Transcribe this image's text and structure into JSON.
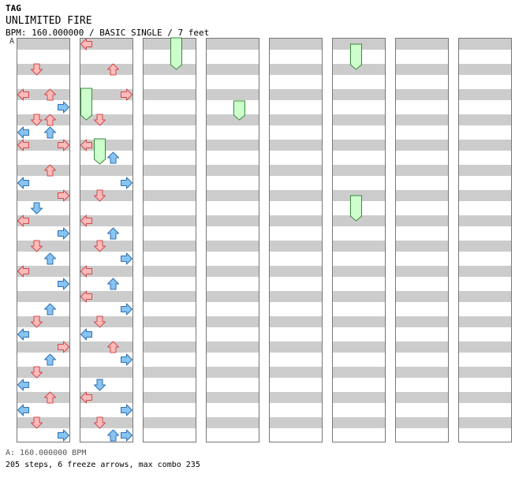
{
  "header": {
    "artist": "TAG",
    "title": "UNLIMITED FIRE",
    "info": "BPM: 160.000000 / BASIC SINGLE / 7 feet",
    "bpm_marker": "A"
  },
  "footer": {
    "bpm_line": "A: 160.000000 BPM",
    "stats_line": "205 steps, 6 freeze arrows, max combo 235"
  },
  "colors": {
    "band": "#cccccc",
    "red_fill": "#ffbbbb",
    "red_stroke": "#d04a4a",
    "blue_fill": "#88c4f2",
    "blue_stroke": "#2f6fb0",
    "freeze_fill": "#ccffcc",
    "freeze_stroke": "#3a8a3a",
    "border": "#777777"
  },
  "chart_data": {
    "type": "step-chart",
    "columns": 8,
    "measures_per_column": 8,
    "rows_per_measure": 8,
    "directions": [
      "left",
      "down",
      "up",
      "right"
    ],
    "arrows": [
      [
        0,
        2,
        1
      ],
      [
        0,
        4,
        0
      ],
      [
        0,
        4,
        2
      ],
      [
        0,
        5,
        3
      ],
      [
        0,
        6,
        1
      ],
      [
        0,
        6,
        2
      ],
      [
        0,
        7,
        0
      ],
      [
        0,
        7,
        2
      ],
      [
        0,
        8,
        0
      ],
      [
        0,
        8,
        3
      ],
      [
        0,
        10,
        2
      ],
      [
        0,
        11,
        0
      ],
      [
        0,
        12,
        3
      ],
      [
        0,
        13,
        1
      ],
      [
        0,
        14,
        0
      ],
      [
        0,
        15,
        3
      ],
      [
        0,
        16,
        1
      ],
      [
        0,
        17,
        2
      ],
      [
        0,
        18,
        0
      ],
      [
        0,
        19,
        3
      ],
      [
        0,
        21,
        2
      ],
      [
        0,
        22,
        1
      ],
      [
        0,
        23,
        0
      ],
      [
        0,
        24,
        3
      ],
      [
        0,
        25,
        2
      ],
      [
        0,
        26,
        1
      ],
      [
        0,
        27,
        0
      ],
      [
        0,
        28,
        2
      ],
      [
        0,
        29,
        0
      ],
      [
        0,
        30,
        1
      ],
      [
        0,
        31,
        3
      ],
      [
        1,
        0,
        0
      ],
      [
        1,
        2,
        2
      ],
      [
        1,
        4,
        3
      ],
      [
        1,
        6,
        1
      ],
      [
        1,
        8,
        0
      ],
      [
        1,
        9,
        2
      ],
      [
        1,
        11,
        3
      ],
      [
        1,
        12,
        1
      ],
      [
        1,
        14,
        0
      ],
      [
        1,
        15,
        2
      ],
      [
        1,
        16,
        1
      ],
      [
        1,
        17,
        3
      ],
      [
        1,
        18,
        0
      ],
      [
        1,
        19,
        2
      ],
      [
        1,
        20,
        0
      ],
      [
        1,
        21,
        3
      ],
      [
        1,
        22,
        1
      ],
      [
        1,
        23,
        0
      ],
      [
        1,
        24,
        2
      ],
      [
        1,
        25,
        3
      ],
      [
        1,
        27,
        1
      ],
      [
        1,
        28,
        0
      ],
      [
        1,
        29,
        3
      ],
      [
        1,
        30,
        1
      ],
      [
        1,
        31,
        2
      ],
      [
        1,
        31,
        3
      ]
    ],
    "freezes": [
      [
        1,
        0,
        1,
        0,
        3
      ],
      [
        1,
        1,
        2,
        0,
        2
      ],
      [
        2,
        2,
        0,
        0,
        3
      ],
      [
        3,
        2,
        1,
        2,
        3
      ],
      [
        4,
        6,
        0,
        1,
        3
      ],
      [
        4,
        6,
        3,
        1,
        3
      ]
    ]
  }
}
